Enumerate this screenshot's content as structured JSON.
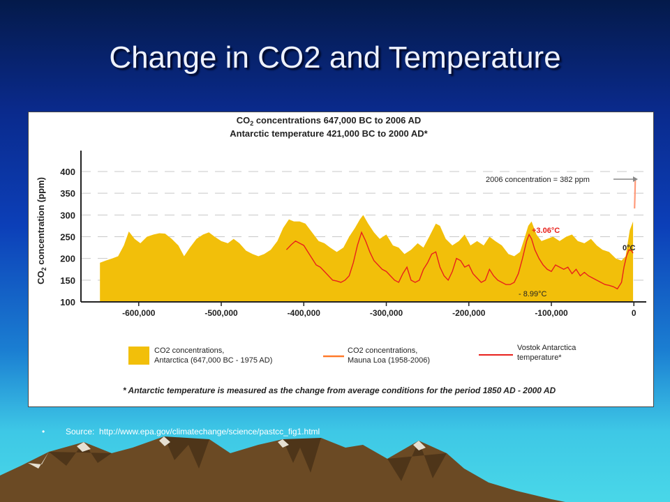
{
  "slide": {
    "title": "Change in CO2 and Temperature",
    "source_label": "Source:",
    "source_url": "http://www.epa.gov/climatechange/science/pastcc_fig1.html",
    "bullet": "•"
  },
  "colors": {
    "background_top": "#041a4a",
    "background_bottom": "#49d7e8",
    "antarctica_fill": "#f2bf0a",
    "mauna_loa_line": "#e8201b",
    "vostok_line": "#e8201b",
    "current_marker": "#ff9a7a",
    "annotation_red": "#e8201b",
    "mountain": "#6b4a24"
  },
  "chart_data": {
    "type": "area",
    "title_line1_prefix": "CO",
    "title_line1_sub": "2",
    "title_line1_rest": " concentrations 647,000 BC to 2006 AD",
    "title_line2": "Antarctic temperature 421,000 BC to 2000 AD*",
    "ylabel_prefix": "CO",
    "ylabel_sub": "2",
    "ylabel_rest": " concentration (ppm)",
    "ylim": [
      100,
      400
    ],
    "xlim": [
      -670000,
      15000
    ],
    "yticks": [
      "100",
      "150",
      "200",
      "250",
      "300",
      "350",
      "400"
    ],
    "ytick_values": [
      100,
      150,
      200,
      250,
      300,
      350,
      400
    ],
    "xticks": [
      "-600,000",
      "-500,000",
      "-400,000",
      "-300,000",
      "-200,000",
      "-100,000",
      "0"
    ],
    "xtick_values": [
      -600000,
      -500000,
      -400000,
      -300000,
      -200000,
      -100000,
      0
    ],
    "grid": "dashed horizontal",
    "series": [
      {
        "name": "CO2 concentrations, Antarctica (647,000 BC - 1975 AD)",
        "kind": "area",
        "x": [
          -647000,
          -640000,
          -632000,
          -625000,
          -618000,
          -612000,
          -605000,
          -598000,
          -590000,
          -582000,
          -575000,
          -568000,
          -560000,
          -552000,
          -545000,
          -538000,
          -530000,
          -522000,
          -515000,
          -508000,
          -500000,
          -492000,
          -485000,
          -478000,
          -470000,
          -462000,
          -455000,
          -448000,
          -440000,
          -432000,
          -425000,
          -418000,
          -412000,
          -405000,
          -398000,
          -390000,
          -382000,
          -375000,
          -368000,
          -360000,
          -352000,
          -345000,
          -338000,
          -332000,
          -328000,
          -322000,
          -315000,
          -308000,
          -300000,
          -292000,
          -285000,
          -278000,
          -270000,
          -262000,
          -255000,
          -248000,
          -240000,
          -235000,
          -228000,
          -220000,
          -212000,
          -205000,
          -198000,
          -190000,
          -182000,
          -175000,
          -168000,
          -160000,
          -152000,
          -145000,
          -138000,
          -132000,
          -128000,
          -124000,
          -118000,
          -112000,
          -105000,
          -98000,
          -90000,
          -82000,
          -75000,
          -68000,
          -60000,
          -52000,
          -45000,
          -38000,
          -30000,
          -22000,
          -15000,
          -10000,
          -5000,
          -1000
        ],
        "y": [
          190,
          195,
          200,
          205,
          230,
          262,
          245,
          235,
          250,
          255,
          258,
          257,
          245,
          230,
          205,
          225,
          245,
          255,
          260,
          250,
          240,
          235,
          245,
          235,
          218,
          210,
          205,
          210,
          220,
          240,
          270,
          290,
          285,
          285,
          280,
          260,
          240,
          235,
          225,
          215,
          225,
          250,
          270,
          290,
          300,
          280,
          260,
          245,
          255,
          230,
          225,
          210,
          220,
          235,
          225,
          250,
          280,
          275,
          245,
          230,
          240,
          255,
          230,
          240,
          230,
          250,
          240,
          230,
          210,
          205,
          215,
          250,
          275,
          285,
          255,
          240,
          245,
          250,
          240,
          250,
          255,
          240,
          235,
          245,
          230,
          220,
          215,
          200,
          195,
          205,
          265,
          285
        ]
      },
      {
        "name": "CO2 concentrations, Mauna Loa (1958-2006)",
        "kind": "line",
        "x": [
          -900,
          -500,
          0
        ],
        "y": [
          315,
          340,
          382
        ]
      },
      {
        "name": "Vostok Antarctica temperature*",
        "kind": "line",
        "x": [
          -421000,
          -415000,
          -410000,
          -405000,
          -400000,
          -395000,
          -390000,
          -385000,
          -380000,
          -375000,
          -370000,
          -365000,
          -360000,
          -355000,
          -350000,
          -345000,
          -340000,
          -335000,
          -330000,
          -325000,
          -320000,
          -315000,
          -310000,
          -305000,
          -300000,
          -295000,
          -290000,
          -285000,
          -280000,
          -275000,
          -270000,
          -265000,
          -260000,
          -255000,
          -250000,
          -245000,
          -240000,
          -235000,
          -230000,
          -225000,
          -220000,
          -215000,
          -210000,
          -205000,
          -200000,
          -195000,
          -190000,
          -185000,
          -180000,
          -175000,
          -170000,
          -165000,
          -160000,
          -155000,
          -150000,
          -145000,
          -140000,
          -135000,
          -130000,
          -127000,
          -124000,
          -120000,
          -115000,
          -110000,
          -105000,
          -100000,
          -95000,
          -90000,
          -85000,
          -80000,
          -75000,
          -70000,
          -65000,
          -60000,
          -55000,
          -50000,
          -45000,
          -40000,
          -35000,
          -30000,
          -25000,
          -20000,
          -15000,
          -12000,
          -9000,
          -6000,
          -3000,
          -1000
        ],
        "y": [
          220,
          232,
          240,
          235,
          230,
          215,
          200,
          185,
          180,
          170,
          160,
          150,
          148,
          145,
          150,
          160,
          190,
          230,
          260,
          240,
          215,
          195,
          185,
          175,
          170,
          160,
          150,
          145,
          165,
          180,
          150,
          145,
          150,
          175,
          190,
          210,
          215,
          180,
          160,
          150,
          170,
          200,
          195,
          180,
          185,
          165,
          155,
          145,
          150,
          175,
          160,
          150,
          145,
          140,
          140,
          145,
          165,
          200,
          240,
          255,
          245,
          220,
          200,
          185,
          175,
          170,
          185,
          180,
          175,
          180,
          165,
          175,
          160,
          168,
          160,
          155,
          150,
          145,
          140,
          138,
          135,
          130,
          145,
          180,
          205,
          220,
          218,
          212
        ]
      }
    ],
    "annotations": {
      "current_concentration": "2006 concentration = 382 ppm",
      "max_temp": "+3.06°C",
      "min_temp": "- 8.99°C",
      "zero_temp": "0°C"
    },
    "legend": {
      "placement": "bottom",
      "items": [
        {
          "line1": "CO2 concentrations,",
          "line2": "Antarctica (647,000 BC - 1975 AD)",
          "swatch": "area"
        },
        {
          "line1": "CO2 concentrations,",
          "line2": "Mauna Loa (1958-2006)",
          "swatch": "line"
        },
        {
          "line1": "Vostok Antarctica",
          "line2": "temperature*",
          "swatch": "line"
        }
      ]
    },
    "footnote": "* Antarctic temperature is measured as the change from average conditions for the period 1850 AD - 2000 AD"
  }
}
